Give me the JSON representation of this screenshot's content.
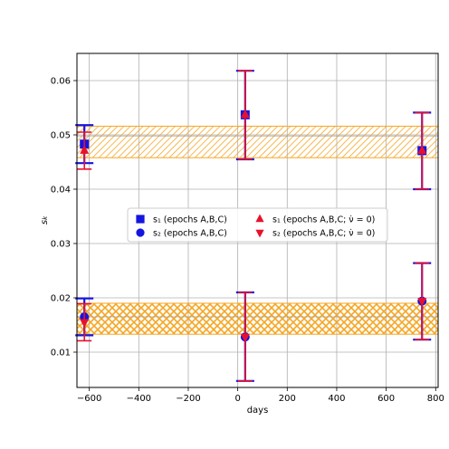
{
  "chart_data": {
    "type": "scatter",
    "xlabel": "days",
    "ylabel": "s_k",
    "xlim": [
      -650,
      810
    ],
    "ylim": [
      0.0035,
      0.065
    ],
    "xticks": [
      -600,
      -400,
      -200,
      0,
      200,
      400,
      600,
      800
    ],
    "yticks": [
      0.01,
      0.02,
      0.03,
      0.04,
      0.05,
      0.06
    ],
    "xtick_labels": [
      "−600",
      "−400",
      "−200",
      "0",
      "200",
      "400",
      "600",
      "800"
    ],
    "ytick_labels": [
      "0.01",
      "0.02",
      "0.03",
      "0.04",
      "0.05",
      "0.06"
    ],
    "grid": true,
    "legend_position": "center",
    "bands": [
      {
        "y_low": 0.0458,
        "y_high": 0.0516,
        "center": 0.0498,
        "hatch": "diagonal",
        "color": "#f5a623"
      },
      {
        "y_low": 0.0133,
        "y_high": 0.019,
        "center": 0.0165,
        "hatch": "cross",
        "color": "#f5a623"
      }
    ],
    "series": [
      {
        "key": "s1",
        "label": "s₁ (epochs A,B,C)",
        "marker": "square",
        "color": "#1515e0",
        "points": [
          {
            "x": -620,
            "y": 0.0483,
            "ylow": 0.0448,
            "yhigh": 0.0518
          },
          {
            "x": 30,
            "y": 0.0537,
            "ylow": 0.0455,
            "yhigh": 0.0618
          },
          {
            "x": 745,
            "y": 0.0471,
            "ylow": 0.04,
            "yhigh": 0.0541
          }
        ]
      },
      {
        "key": "s2",
        "label": "s₂ (epochs A,B,C)",
        "marker": "circle",
        "color": "#1515e0",
        "points": [
          {
            "x": -620,
            "y": 0.0165,
            "ylow": 0.0131,
            "yhigh": 0.0199
          },
          {
            "x": 30,
            "y": 0.0128,
            "ylow": 0.0047,
            "yhigh": 0.021
          },
          {
            "x": 745,
            "y": 0.0194,
            "ylow": 0.0123,
            "yhigh": 0.0264
          }
        ]
      },
      {
        "key": "s1nu",
        "label": "s₁ (epochs A,B,C; ν̇ = 0)",
        "marker": "triangle-up",
        "color": "#e8112d",
        "points": [
          {
            "x": -620,
            "y": 0.0471,
            "ylow": 0.0437,
            "yhigh": 0.0505
          },
          {
            "x": 30,
            "y": 0.0537,
            "ylow": 0.0455,
            "yhigh": 0.0618
          },
          {
            "x": 745,
            "y": 0.0471,
            "ylow": 0.04,
            "yhigh": 0.0541
          }
        ]
      },
      {
        "key": "s2nu",
        "label": "s₂ (epochs A,B,C; ν̇ = 0)",
        "marker": "triangle-down",
        "color": "#e8112d",
        "points": [
          {
            "x": -620,
            "y": 0.0155,
            "ylow": 0.0121,
            "yhigh": 0.0189
          },
          {
            "x": 30,
            "y": 0.0128,
            "ylow": 0.0047,
            "yhigh": 0.021
          },
          {
            "x": 745,
            "y": 0.0194,
            "ylow": 0.0123,
            "yhigh": 0.0264
          }
        ]
      }
    ]
  }
}
